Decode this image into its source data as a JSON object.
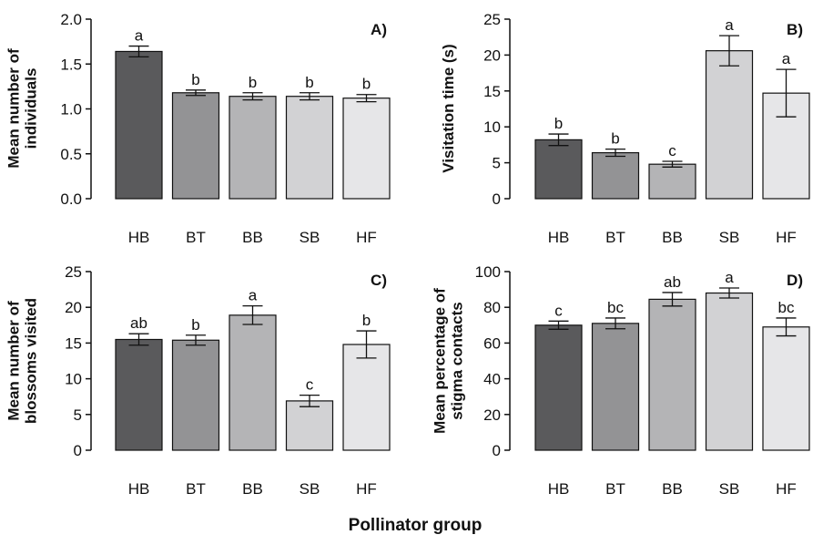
{
  "figure": {
    "xlabel": "Pollinator group",
    "bar_colors": [
      "#5a5a5c",
      "#939395",
      "#b4b4b6",
      "#d2d2d4",
      "#e6e6e8"
    ]
  },
  "chart_data": [
    {
      "type": "bar",
      "panel_label": "A)",
      "ylabel": [
        "Mean number of",
        "individuals"
      ],
      "categories": [
        "HB",
        "BT",
        "BB",
        "SB",
        "HF"
      ],
      "values": [
        1.64,
        1.18,
        1.14,
        1.14,
        1.12
      ],
      "errors": [
        0.06,
        0.03,
        0.04,
        0.04,
        0.04
      ],
      "significance": [
        "a",
        "b",
        "b",
        "b",
        "b"
      ],
      "ylim": [
        0,
        2.0
      ],
      "yticks": [
        "0.0",
        "0.5",
        "1.0",
        "1.5",
        "2.0"
      ]
    },
    {
      "type": "bar",
      "panel_label": "B)",
      "ylabel": [
        "Visitation time (s)"
      ],
      "categories": [
        "HB",
        "BT",
        "BB",
        "SB",
        "HF"
      ],
      "values": [
        8.2,
        6.4,
        4.8,
        20.6,
        14.7
      ],
      "errors": [
        0.8,
        0.5,
        0.4,
        2.1,
        3.3
      ],
      "significance": [
        "b",
        "b",
        "c",
        "a",
        "a"
      ],
      "ylim": [
        0,
        25
      ],
      "yticks": [
        "0",
        "5",
        "10",
        "15",
        "20",
        "25"
      ]
    },
    {
      "type": "bar",
      "panel_label": "C)",
      "ylabel": [
        "Mean number of",
        "blossoms visited"
      ],
      "categories": [
        "HB",
        "BT",
        "BB",
        "SB",
        "HF"
      ],
      "values": [
        15.5,
        15.4,
        18.9,
        6.9,
        14.8
      ],
      "errors": [
        0.8,
        0.7,
        1.3,
        0.8,
        1.9
      ],
      "significance": [
        "ab",
        "b",
        "a",
        "c",
        "b"
      ],
      "ylim": [
        0,
        25
      ],
      "yticks": [
        "0",
        "5",
        "10",
        "15",
        "20",
        "25"
      ]
    },
    {
      "type": "bar",
      "panel_label": "D)",
      "ylabel": [
        "Mean percentage of",
        "stigma contacts"
      ],
      "categories": [
        "HB",
        "BT",
        "BB",
        "SB",
        "HF"
      ],
      "values": [
        70,
        71,
        84.5,
        88,
        69
      ],
      "errors": [
        2.3,
        3.0,
        3.8,
        2.8,
        5.0
      ],
      "significance": [
        "c",
        "bc",
        "ab",
        "a",
        "bc"
      ],
      "ylim": [
        0,
        100
      ],
      "yticks": [
        "0",
        "20",
        "40",
        "60",
        "80",
        "100"
      ]
    }
  ]
}
